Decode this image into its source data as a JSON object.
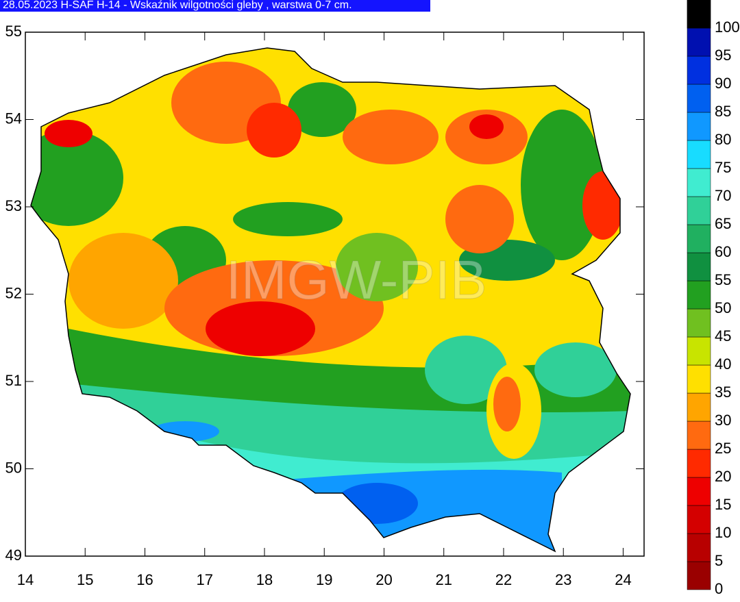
{
  "map": {
    "title": "28.05.2023 H-SAF H-14 - Wskaźnik wilgotności gleby , warstwa 0-7 cm.",
    "watermark": "IMGW-PIB",
    "xlim": [
      14,
      24.35
    ],
    "ylim": [
      49,
      55
    ],
    "xticks": [
      14,
      15,
      16,
      17,
      18,
      19,
      20,
      21,
      22,
      23,
      24
    ],
    "yticks": [
      49,
      50,
      51,
      52,
      53,
      54,
      55
    ],
    "colorbar": {
      "lim": [
        0,
        105
      ],
      "ticks": [
        0,
        5,
        10,
        15,
        20,
        25,
        30,
        35,
        40,
        45,
        50,
        55,
        60,
        65,
        70,
        75,
        80,
        85,
        90,
        95,
        100
      ],
      "colors": [
        "#9a0000",
        "#b80000",
        "#d40000",
        "#ee0000",
        "#ff2a00",
        "#ff6a10",
        "#ffa500",
        "#ffe000",
        "#c8e400",
        "#70c020",
        "#22a020",
        "#109040",
        "#20b060",
        "#30d098",
        "#40ecd0",
        "#18dcff",
        "#1098ff",
        "#0060f0",
        "#0030e0",
        "#0010b0",
        "#000060",
        "#000000"
      ]
    }
  }
}
